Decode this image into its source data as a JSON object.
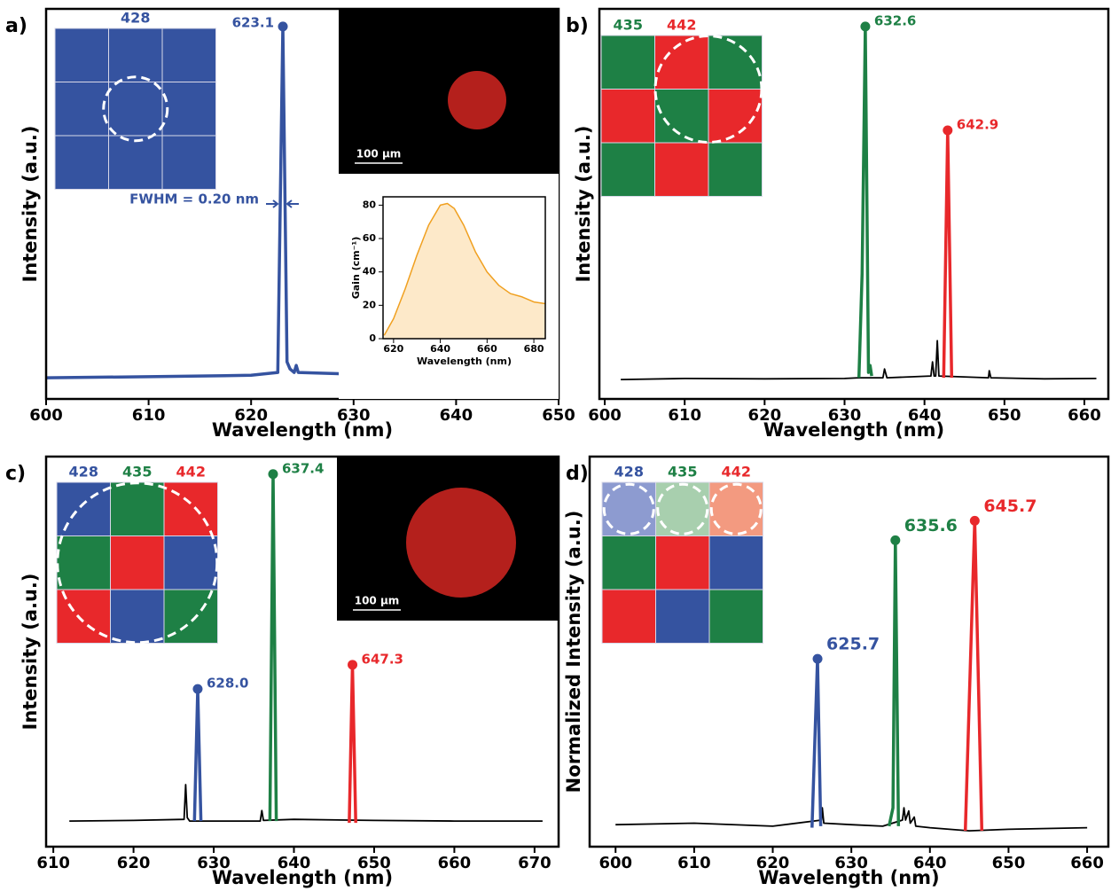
{
  "chart_data": [
    {
      "type": "line",
      "panel_label": "a)",
      "xlabel": "Wavelength (nm)",
      "ylabel": "Intensity (a.u.)",
      "xlim": [
        600,
        650
      ],
      "ylim": [
        -0.055,
        1.05
      ],
      "xticks": [
        600,
        610,
        620,
        630,
        640,
        650
      ],
      "series": [
        {
          "color": "#3553a0",
          "peak_label": "623.1",
          "x": [
            600,
            610,
            620,
            622.6,
            623.1,
            623.5,
            623.8,
            624.2,
            624.4,
            624.6,
            630,
            640,
            650
          ],
          "values": [
            0.005,
            0.008,
            0.012,
            0.02,
            1.0,
            0.05,
            0.03,
            0.02,
            0.04,
            0.02,
            0.015,
            0.01,
            0.01
          ]
        }
      ],
      "annotation": "FWHM = 0.20 nm",
      "pattern": {
        "labels": [
          {
            "text": "428",
            "color": "#3553a0"
          }
        ],
        "cells": [
          "#3553a0",
          "#3553a0",
          "#3553a0",
          "#3553a0",
          "#3553a0",
          "#3553a0",
          "#3553a0",
          "#3553a0",
          "#3553a0"
        ]
      },
      "micrograph": {
        "scale_bar": "100 µm"
      }
    },
    {
      "type": "line",
      "panel_label": "b)",
      "xlabel": "Wavelength (nm)",
      "ylabel": "Intensity (a.u.)",
      "xlim": [
        599.33,
        663
      ],
      "ylim": [
        -0.055,
        1.05
      ],
      "xticks": [
        600,
        610,
        620,
        630,
        640,
        650,
        660
      ],
      "series": [
        {
          "color": "#000000",
          "x": [
            602,
            610,
            620,
            630,
            631.8,
            634.8,
            635,
            635.3,
            640.8,
            641,
            641.2,
            641.4,
            641.6,
            641.8,
            648,
            648.1,
            648.3,
            655,
            661.5
          ],
          "values": [
            0,
            0.003,
            0.002,
            0.003,
            0.005,
            0.005,
            0.03,
            0.005,
            0.01,
            0.05,
            0.01,
            0.01,
            0.11,
            0.01,
            0.005,
            0.025,
            0.005,
            0.002,
            0.003
          ]
        },
        {
          "color": "#1e8045",
          "peak_label": "632.6",
          "x": [
            631.8,
            632.2,
            632.6,
            633.0,
            633.2,
            633.4
          ],
          "values": [
            0.005,
            0.3,
            1.0,
            0.02,
            0.04,
            0.01
          ]
        },
        {
          "color": "#e8282b",
          "peak_label": "642.9",
          "x": [
            642.4,
            642.9,
            643.4
          ],
          "values": [
            0.005,
            0.706,
            0.005
          ]
        }
      ],
      "pattern": {
        "labels": [
          {
            "text": "435",
            "color": "#1e8045"
          },
          {
            "text": "442",
            "color": "#e8282b"
          }
        ],
        "cells": [
          "#1e8045",
          "#e8282b",
          "#1e8045",
          "#e8282b",
          "#1e8045",
          "#e8282b",
          "#1e8045",
          "#e8282b",
          "#1e8045"
        ]
      }
    },
    {
      "type": "line",
      "panel_label": "c)",
      "xlabel": "Wavelength (nm)",
      "ylabel": "Intensity (a.u.)",
      "xlim": [
        609.1,
        673
      ],
      "ylim": [
        -0.063,
        1.05
      ],
      "xticks": [
        610,
        620,
        630,
        640,
        650,
        660,
        670
      ],
      "series": [
        {
          "color": "#000000",
          "x": [
            612,
            620,
            626.3,
            626.5,
            626.7,
            627,
            630,
            635.8,
            636,
            636.2,
            640,
            650,
            660,
            671
          ],
          "values": [
            0.01,
            0.012,
            0.015,
            0.114,
            0.02,
            0.01,
            0.01,
            0.01,
            0.04,
            0.012,
            0.015,
            0.012,
            0.01,
            0.01
          ]
        },
        {
          "color": "#3553a0",
          "peak_label": "628.0",
          "x": [
            627.6,
            628.0,
            628.4
          ],
          "values": [
            0.01,
            0.387,
            0.01
          ]
        },
        {
          "color": "#1e8045",
          "peak_label": "637.4",
          "x": [
            637.0,
            637.4,
            637.8
          ],
          "values": [
            0.01,
            1.0,
            0.01
          ]
        },
        {
          "color": "#e8282b",
          "peak_label": "647.3",
          "x": [
            646.9,
            647.3,
            647.7
          ],
          "values": [
            0.005,
            0.456,
            0.005
          ]
        }
      ],
      "pattern": {
        "labels": [
          {
            "text": "428",
            "color": "#3553a0"
          },
          {
            "text": "435",
            "color": "#1e8045"
          },
          {
            "text": "442",
            "color": "#e8282b"
          }
        ],
        "cells": [
          "#3553a0",
          "#1e8045",
          "#e8282b",
          "#1e8045",
          "#e8282b",
          "#3553a0",
          "#e8282b",
          "#3553a0",
          "#1e8045"
        ]
      },
      "micrograph": {
        "scale_bar": "100 µm"
      }
    },
    {
      "type": "line",
      "panel_label": "d)",
      "xlabel": "Wavelength (nm)",
      "ylabel": "Normalized Intensity (a.u.)",
      "xlim": [
        596.7,
        662.7
      ],
      "ylim": [
        -0.067,
        1.21
      ],
      "xticks": [
        600,
        610,
        620,
        630,
        640,
        650,
        660
      ],
      "series": [
        {
          "color": "#000000",
          "x": [
            600,
            610,
            620,
            626.2,
            626.3,
            626.5,
            630,
            634,
            636.5,
            636.7,
            636.9,
            637.3,
            637.5,
            638,
            638.2,
            640,
            645,
            650,
            660
          ],
          "values": [
            0.005,
            0.01,
            0.0,
            0.02,
            0.06,
            0.01,
            0.005,
            0.0,
            0.02,
            0.06,
            0.02,
            0.05,
            0.01,
            0.03,
            0.0,
            -0.005,
            -0.015,
            -0.01,
            -0.005
          ]
        },
        {
          "color": "#3553a0",
          "peak_label": "625.7",
          "x": [
            625.0,
            625.7,
            626.1
          ],
          "values": [
            -0.005,
            0.548,
            0.0
          ]
        },
        {
          "color": "#1e8045",
          "peak_label": "635.6",
          "x": [
            634.8,
            635.3,
            635.6,
            636.0
          ],
          "values": [
            0.0,
            0.06,
            0.936,
            0.0
          ]
        },
        {
          "color": "#e8282b",
          "peak_label": "645.7",
          "x": [
            644.5,
            645.7,
            646.6
          ],
          "values": [
            -0.015,
            1.0,
            -0.015
          ]
        }
      ],
      "pattern": {
        "labels": [
          {
            "text": "428",
            "color": "#3553a0"
          },
          {
            "text": "435",
            "color": "#1e8045"
          },
          {
            "text": "442",
            "color": "#e8282b"
          }
        ],
        "cells": [
          "#8d9bd0",
          "#a8cfae",
          "#f39a80",
          "#1e8045",
          "#e8282b",
          "#3553a0",
          "#e8282b",
          "#3553a0",
          "#1e8045"
        ]
      }
    },
    {
      "type": "area",
      "xlabel": "Wavelength (nm)",
      "ylabel": "Gain (cm⁻¹)",
      "xlim": [
        615.5,
        684.9
      ],
      "ylim": [
        0,
        85
      ],
      "xticks": [
        620,
        640,
        660,
        680
      ],
      "yticks": [
        0,
        20,
        40,
        60,
        80
      ],
      "series": [
        {
          "color": "#f0a020",
          "fill": "#fde9c9",
          "x": [
            616,
            620,
            625,
            630,
            635,
            640,
            643,
            646,
            650,
            655,
            660,
            665,
            670,
            675,
            680,
            684.9
          ],
          "values": [
            2,
            12,
            30,
            50,
            68,
            80,
            81,
            78,
            68,
            52,
            40,
            32,
            27,
            25,
            22,
            21
          ]
        }
      ]
    }
  ]
}
